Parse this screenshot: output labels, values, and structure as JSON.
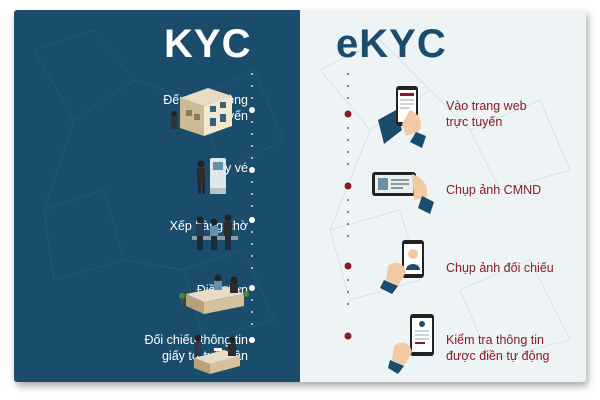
{
  "left": {
    "title": "KYC",
    "steps": [
      {
        "lines": [
          "Đến văn phòng",
          "ngoại tuyến"
        ],
        "icon": "office-building-icon"
      },
      {
        "lines": [
          "Lấy vé"
        ],
        "icon": "ticket-machine-icon"
      },
      {
        "lines": [
          "Xếp hàng chờ"
        ],
        "icon": "waiting-queue-icon"
      },
      {
        "lines": [
          "Điền đơn"
        ],
        "icon": "service-counter-icon"
      },
      {
        "lines": [
          "Đối chiếu thông tin",
          "giấy tờ tuỳ thân"
        ],
        "icon": "identity-check-desk-icon"
      }
    ]
  },
  "right": {
    "title": "eKYC",
    "steps": [
      {
        "lines": [
          "Vào trang web",
          "trực tuyến"
        ],
        "icon": "phone-website-icon"
      },
      {
        "lines": [
          "Chụp ảnh CMND"
        ],
        "icon": "phone-id-card-photo-icon"
      },
      {
        "lines": [
          "Chụp ảnh đối chiếu"
        ],
        "icon": "phone-selfie-icon"
      },
      {
        "lines": [
          "Kiểm tra thông tin",
          "được điền tự động"
        ],
        "icon": "phone-autofill-icon"
      }
    ]
  },
  "colors": {
    "left_bg": "#1a4d6b",
    "right_bg": "#eef3f6",
    "accent": "#8b1a24",
    "text_light": "#ffffff"
  }
}
